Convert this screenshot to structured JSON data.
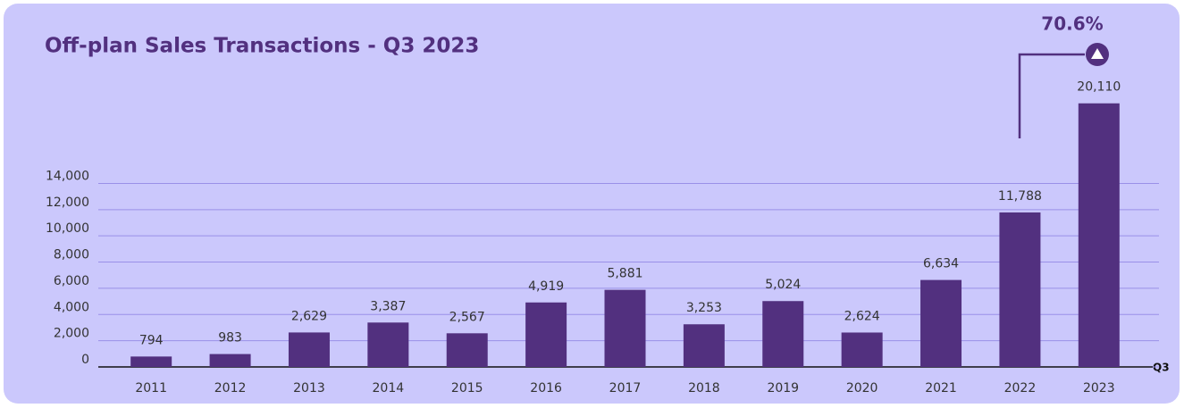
{
  "chart_data": {
    "type": "bar",
    "title": "Off-plan Sales Transactions - Q3 2023",
    "categories": [
      "2011",
      "2012",
      "2013",
      "2014",
      "2015",
      "2016",
      "2017",
      "2018",
      "2019",
      "2020",
      "2021",
      "2022",
      "2023"
    ],
    "values": [
      794,
      983,
      2629,
      3387,
      2567,
      4919,
      5881,
      3253,
      5024,
      2624,
      6634,
      11788,
      20110
    ],
    "value_labels": [
      "794",
      "983",
      "2,629",
      "3,387",
      "2,567",
      "4,919",
      "5,881",
      "3,253",
      "5,024",
      "2,624",
      "6,634",
      "11,788",
      "20,110"
    ],
    "color": "#52307f",
    "ylim": [
      0,
      22000
    ],
    "yticks": [
      0,
      {
        "value": 2000,
        "label": "2,000"
      },
      {
        "value": 4000,
        "label": "4,000"
      },
      {
        "value": 6000,
        "label": "6,000"
      },
      {
        "value": 8000,
        "label": "8,000"
      },
      {
        "value": 10000,
        "label": "10,000"
      },
      {
        "value": 12000,
        "label": "12,000"
      },
      {
        "value": 14000,
        "label": "14,000"
      }
    ],
    "grid": true,
    "x_axis_note": "Q3",
    "annotation": "70.6%"
  }
}
